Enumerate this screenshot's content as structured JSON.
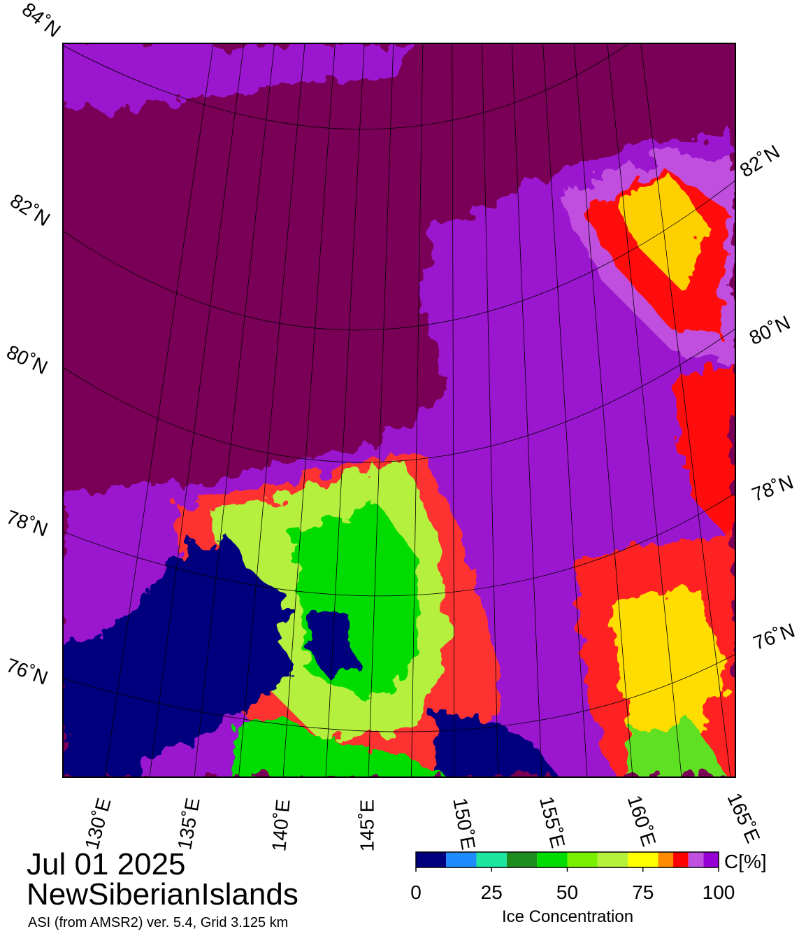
{
  "map": {
    "lat_labels_left": [
      "84˚N",
      "82˚N",
      "80˚N",
      "78˚N",
      "76˚N"
    ],
    "lat_labels_right": [
      "82˚N",
      "80˚N",
      "78˚N",
      "76˚N"
    ],
    "lon_labels": [
      "130˚E",
      "135˚E",
      "140˚E",
      "145˚E",
      "150˚E",
      "155˚E",
      "160˚E",
      "165˚E"
    ]
  },
  "caption": {
    "date": "Jul 01 2025",
    "region": "NewSiberianIslands",
    "source": "ASI (from AMSR2) ver. 5.4,  Grid 3.125 km"
  },
  "colorbar": {
    "bins": [
      0,
      10,
      20,
      30,
      40,
      50,
      60,
      70,
      80,
      85,
      90,
      95,
      100
    ],
    "colors": [
      "#00007f",
      "#1e8cff",
      "#1ee6a0",
      "#1e8c1e",
      "#00dc00",
      "#78f000",
      "#b4f03c",
      "#ffff00",
      "#ff8c00",
      "#ff0000",
      "#c050e0",
      "#9600d2"
    ],
    "ticks": [
      0,
      25,
      50,
      75,
      100
    ],
    "unit": "C[%]",
    "label": "Ice Concentration"
  }
}
